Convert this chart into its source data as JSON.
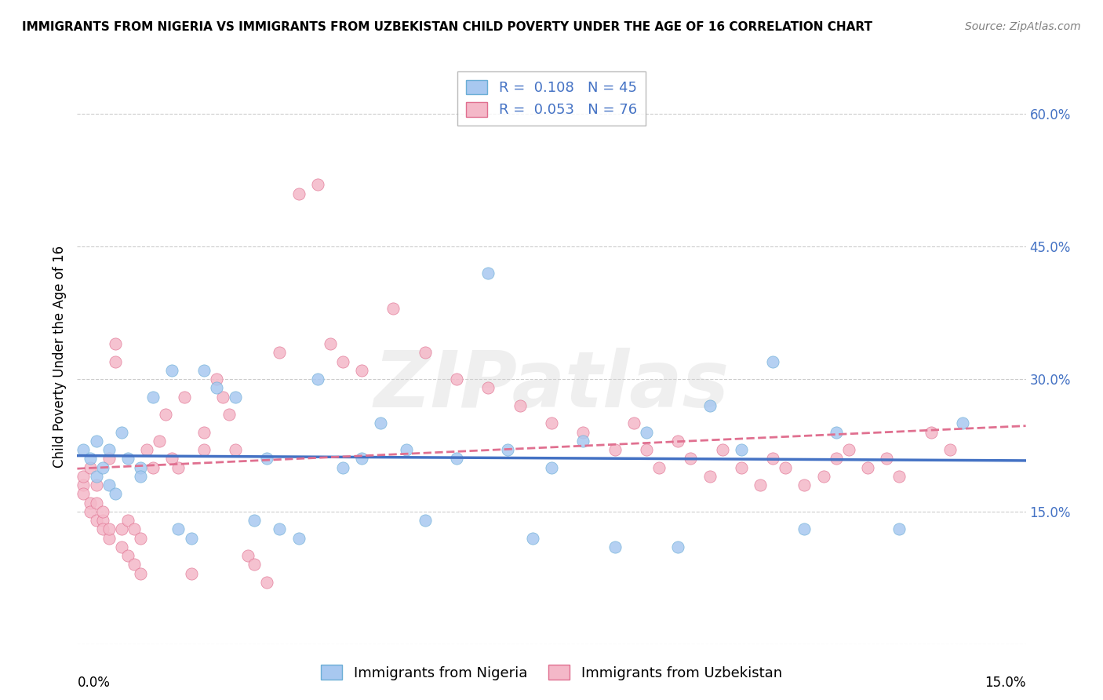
{
  "title": "IMMIGRANTS FROM NIGERIA VS IMMIGRANTS FROM UZBEKISTAN CHILD POVERTY UNDER THE AGE OF 16 CORRELATION CHART",
  "source": "Source: ZipAtlas.com",
  "ylabel": "Child Poverty Under the Age of 16",
  "x_min": 0.0,
  "x_max": 0.15,
  "y_min": 0.0,
  "y_max": 0.65,
  "yticks": [
    0.0,
    0.15,
    0.3,
    0.45,
    0.6
  ],
  "nigeria_color": "#a8c8f0",
  "nigeria_edge_color": "#6baed6",
  "uzbekistan_color": "#f4b8c8",
  "uzbekistan_edge_color": "#e07090",
  "nigeria_line_color": "#4472c4",
  "uzbekistan_line_color": "#e07090",
  "nigeria_R": 0.108,
  "nigeria_N": 45,
  "uzbekistan_R": 0.053,
  "uzbekistan_N": 76,
  "legend_R_color": "#4472c4",
  "watermark": "ZIPatlas",
  "nigeria_x": [
    0.001,
    0.002,
    0.003,
    0.003,
    0.004,
    0.005,
    0.005,
    0.006,
    0.007,
    0.008,
    0.01,
    0.01,
    0.012,
    0.015,
    0.016,
    0.018,
    0.02,
    0.022,
    0.025,
    0.028,
    0.03,
    0.032,
    0.035,
    0.038,
    0.042,
    0.045,
    0.048,
    0.052,
    0.055,
    0.06,
    0.065,
    0.068,
    0.072,
    0.075,
    0.08,
    0.085,
    0.09,
    0.095,
    0.1,
    0.105,
    0.11,
    0.115,
    0.12,
    0.13,
    0.14
  ],
  "nigeria_y": [
    0.22,
    0.21,
    0.19,
    0.23,
    0.2,
    0.18,
    0.22,
    0.17,
    0.24,
    0.21,
    0.2,
    0.19,
    0.28,
    0.31,
    0.13,
    0.12,
    0.31,
    0.29,
    0.28,
    0.14,
    0.21,
    0.13,
    0.12,
    0.3,
    0.2,
    0.21,
    0.25,
    0.22,
    0.14,
    0.21,
    0.42,
    0.22,
    0.12,
    0.2,
    0.23,
    0.11,
    0.24,
    0.11,
    0.27,
    0.22,
    0.32,
    0.13,
    0.24,
    0.13,
    0.25
  ],
  "uzbekistan_x": [
    0.001,
    0.001,
    0.001,
    0.002,
    0.002,
    0.002,
    0.003,
    0.003,
    0.003,
    0.004,
    0.004,
    0.004,
    0.005,
    0.005,
    0.005,
    0.006,
    0.006,
    0.007,
    0.007,
    0.008,
    0.008,
    0.009,
    0.009,
    0.01,
    0.01,
    0.011,
    0.012,
    0.013,
    0.014,
    0.015,
    0.016,
    0.017,
    0.018,
    0.02,
    0.02,
    0.022,
    0.023,
    0.024,
    0.025,
    0.027,
    0.028,
    0.03,
    0.032,
    0.035,
    0.038,
    0.04,
    0.042,
    0.045,
    0.05,
    0.055,
    0.06,
    0.065,
    0.07,
    0.075,
    0.08,
    0.085,
    0.088,
    0.09,
    0.092,
    0.095,
    0.097,
    0.1,
    0.102,
    0.105,
    0.108,
    0.11,
    0.112,
    0.115,
    0.118,
    0.12,
    0.122,
    0.125,
    0.128,
    0.13,
    0.135,
    0.138
  ],
  "uzbekistan_y": [
    0.18,
    0.19,
    0.17,
    0.16,
    0.2,
    0.15,
    0.14,
    0.18,
    0.16,
    0.14,
    0.13,
    0.15,
    0.12,
    0.13,
    0.21,
    0.34,
    0.32,
    0.13,
    0.11,
    0.14,
    0.1,
    0.09,
    0.13,
    0.08,
    0.12,
    0.22,
    0.2,
    0.23,
    0.26,
    0.21,
    0.2,
    0.28,
    0.08,
    0.22,
    0.24,
    0.3,
    0.28,
    0.26,
    0.22,
    0.1,
    0.09,
    0.07,
    0.33,
    0.51,
    0.52,
    0.34,
    0.32,
    0.31,
    0.38,
    0.33,
    0.3,
    0.29,
    0.27,
    0.25,
    0.24,
    0.22,
    0.25,
    0.22,
    0.2,
    0.23,
    0.21,
    0.19,
    0.22,
    0.2,
    0.18,
    0.21,
    0.2,
    0.18,
    0.19,
    0.21,
    0.22,
    0.2,
    0.21,
    0.19,
    0.24,
    0.22
  ]
}
